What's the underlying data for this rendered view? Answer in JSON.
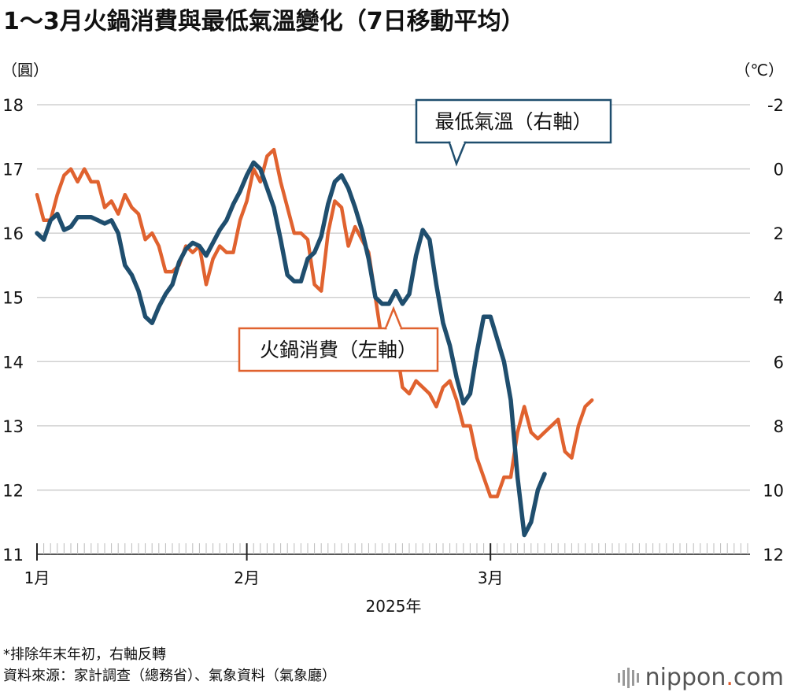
{
  "title": "1〜3月火鍋消費與最低氣溫變化（7日移動平均）",
  "notes": [
    "*排除年末年初，右軸反轉",
    "資料來源：家計調查（總務省）、氣象資料（氣象廳）"
  ],
  "logo": {
    "name": "nippon",
    "dot": ".",
    "suffix": "com"
  },
  "colors": {
    "hotpot": "#e0622f",
    "temp": "#1f4e6e",
    "grid": "#c8c8c8"
  },
  "chart_data": {
    "type": "line",
    "left_unit": "（圓）",
    "right_unit": "（℃）",
    "xlabel": "2025年",
    "x_ticks": [
      {
        "label": "1月",
        "day": 0
      },
      {
        "label": "2月",
        "day": 31
      },
      {
        "label": "3月",
        "day": 67
      }
    ],
    "left_axis": {
      "ylim": [
        11,
        18
      ],
      "ticks": [
        11,
        12,
        13,
        14,
        15,
        16,
        17,
        18
      ]
    },
    "right_axis": {
      "ylim": [
        12,
        -2
      ],
      "ticks": [
        12,
        10,
        8,
        6,
        4,
        2,
        0,
        -2
      ],
      "inverted": true
    },
    "callouts": [
      {
        "text": "最低氣溫（右軸）",
        "series": "temp"
      },
      {
        "text": "火鍋消費（左軸）",
        "series": "hotpot"
      }
    ],
    "series": [
      {
        "key": "hotpot",
        "name": "火鍋消費（左軸）",
        "axis": "left",
        "x_start": 0,
        "values": [
          16.6,
          16.2,
          16.2,
          16.6,
          16.9,
          17.0,
          16.8,
          17.0,
          16.8,
          16.8,
          16.4,
          16.5,
          16.3,
          16.6,
          16.4,
          16.3,
          15.9,
          16.0,
          15.8,
          15.4,
          15.4,
          15.5,
          15.8,
          15.7,
          15.8,
          15.2,
          15.6,
          15.8,
          15.7,
          15.7,
          16.2,
          16.5,
          17.0,
          16.8,
          17.2,
          17.3,
          16.8,
          16.4,
          16.0,
          16.0,
          15.9,
          15.2,
          15.1,
          16.0,
          16.5,
          16.4,
          15.8,
          16.1,
          15.9,
          15.7,
          15.0,
          14.3,
          14.4,
          14.3,
          13.6,
          13.5,
          13.7,
          13.6,
          13.5,
          13.3,
          13.6,
          13.7,
          13.4,
          13.0,
          13.0,
          12.5,
          12.2,
          11.9,
          11.9,
          12.2,
          12.2,
          12.9,
          13.3,
          12.9,
          12.8,
          12.9,
          13.0,
          13.1,
          12.6,
          12.5,
          13.0,
          13.3,
          13.4
        ]
      },
      {
        "key": "temp",
        "name": "最低氣溫（右軸）",
        "axis": "right",
        "x_start": 0,
        "values": [
          2.0,
          2.2,
          1.6,
          1.4,
          1.9,
          1.8,
          1.5,
          1.5,
          1.5,
          1.6,
          1.7,
          1.6,
          2.0,
          3.0,
          3.3,
          3.8,
          4.6,
          4.8,
          4.3,
          3.9,
          3.6,
          2.9,
          2.5,
          2.3,
          2.4,
          2.7,
          2.3,
          1.9,
          1.6,
          1.1,
          0.7,
          0.2,
          -0.2,
          0.0,
          0.6,
          1.2,
          2.2,
          3.3,
          3.5,
          3.5,
          2.8,
          2.6,
          2.1,
          1.1,
          0.4,
          0.2,
          0.6,
          1.2,
          1.9,
          2.8,
          4.0,
          4.2,
          4.2,
          3.8,
          4.2,
          3.9,
          2.7,
          1.9,
          2.2,
          3.6,
          4.8,
          5.5,
          6.5,
          7.3,
          7.0,
          5.7,
          4.6,
          4.6,
          5.3,
          6.0,
          7.2,
          9.6,
          11.4,
          11.0,
          10.0,
          9.5
        ]
      }
    ]
  }
}
